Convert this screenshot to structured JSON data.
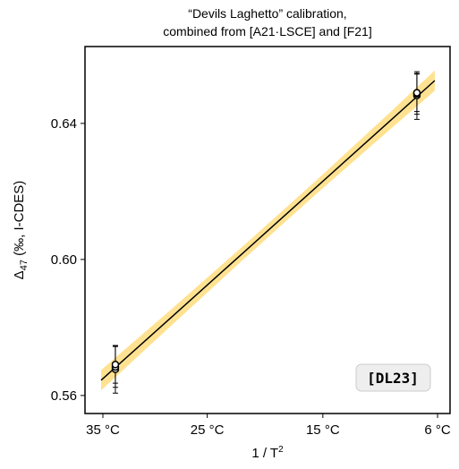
{
  "chart_data": {
    "type": "scatter",
    "title_lines": [
      "“Devils Laghetto” calibration,",
      "combined from [A21·LSCE] and [F21]"
    ],
    "ylabel_symbol": "Δ",
    "ylabel_subscript": "47",
    "ylabel_rest": " (‰, I-CDES)",
    "xlabel_main": "1 / T",
    "xlabel_superscript": "2",
    "annotation": "[DL23]",
    "xlim": [
      1.0408,
      1.2919
    ],
    "ylim": [
      0.5547,
      0.6626
    ],
    "xticks": [
      {
        "value": 1.0531,
        "label": "35 °C"
      },
      {
        "value": 1.1249,
        "label": "25 °C"
      },
      {
        "value": 1.2044,
        "label": "15 °C"
      },
      {
        "value": 1.2833,
        "label": "6 °C"
      }
    ],
    "yticks": [
      {
        "value": 0.56,
        "label": "0.56"
      },
      {
        "value": 0.6,
        "label": "0.60"
      },
      {
        "value": 0.64,
        "label": "0.64"
      }
    ],
    "band_color": "#ffe291",
    "line_color": "#000000",
    "fit": {
      "x": [
        1.0519,
        1.1,
        1.15,
        1.2,
        1.25,
        1.2814
      ],
      "y": [
        0.5645,
        0.5829,
        0.6021,
        0.6213,
        0.6405,
        0.6526
      ],
      "ci_low": [
        0.5615,
        0.5805,
        0.6001,
        0.6193,
        0.638,
        0.6496
      ],
      "ci_high": [
        0.5675,
        0.5853,
        0.6041,
        0.6233,
        0.643,
        0.6556
      ]
    },
    "series": [
      {
        "x": [
          1.0617,
          1.0617,
          1.0617
        ],
        "y": [
          0.5677,
          0.5684,
          0.5691
        ],
        "yerr": [
          0.007,
          0.006,
          0.0055
        ]
      },
      {
        "x": [
          1.2691,
          1.2691,
          1.2691
        ],
        "y": [
          0.6482,
          0.6487,
          0.649
        ],
        "yerr": [
          0.007,
          0.006,
          0.0055
        ]
      }
    ]
  }
}
